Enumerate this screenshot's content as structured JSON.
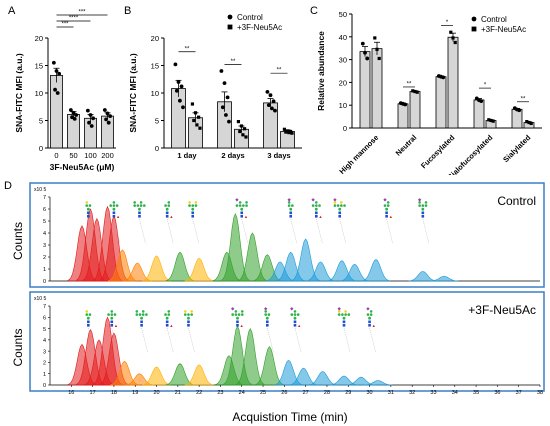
{
  "panels": {
    "A": "A",
    "B": "B",
    "C": "C",
    "D": "D"
  },
  "chart_data": [
    {
      "type": "bar",
      "panel": "A",
      "categories": [
        "0",
        "50",
        "100",
        "200"
      ],
      "values": [
        13.2,
        6.1,
        5.4,
        5.8
      ],
      "errors": [
        1.3,
        0.5,
        0.7,
        0.6
      ],
      "points": [
        [
          15.5,
          14.0,
          13.5,
          10.6,
          10.0
        ],
        [
          6.9,
          6.4,
          6.0,
          5.6,
          5.3
        ],
        [
          6.8,
          6.0,
          5.4,
          4.6,
          4.0
        ],
        [
          6.9,
          6.3,
          5.8,
          5.2,
          4.6
        ]
      ],
      "xlabel": "3F-Neu5Ac (μM)",
      "ylabel": "SNA-FITC MFI (a.u.)",
      "ylim": [
        0,
        20
      ],
      "yticks": [
        0,
        5,
        10,
        15,
        20
      ],
      "significance": [
        {
          "from": 0,
          "to": 1,
          "label": "***"
        },
        {
          "from": 0,
          "to": 2,
          "label": "****"
        },
        {
          "from": 0,
          "to": 3,
          "label": "***"
        }
      ],
      "grid": false
    },
    {
      "type": "bar",
      "panel": "B",
      "categories": [
        "1 day",
        "2 days",
        "3 days"
      ],
      "series": [
        {
          "name": "Control",
          "values": [
            10.8,
            8.4,
            8.2
          ],
          "errors": [
            1.5,
            1.8,
            0.8
          ],
          "points": [
            [
              15.2,
              12.0,
              11.2,
              10.4,
              8.6,
              7.4
            ],
            [
              14.0,
              11.8,
              9.2,
              7.4,
              6.0,
              4.8
            ],
            [
              10.2,
              9.6,
              8.5,
              7.8,
              7.2,
              6.8
            ]
          ]
        },
        {
          "name": "+3F-Neu5Ac",
          "values": [
            5.5,
            3.4,
            3.0
          ],
          "errors": [
            0.9,
            0.6,
            0.3
          ],
          "points": [
            [
              8.0,
              6.4,
              5.6,
              5.0,
              4.2,
              3.6
            ],
            [
              4.8,
              4.0,
              3.5,
              3.0,
              2.4,
              2.0
            ],
            [
              3.4,
              3.1,
              3.0,
              2.9,
              2.8,
              2.7
            ]
          ]
        }
      ],
      "ylabel": "SNA-FITC MFI (a.u.)",
      "ylim": [
        0,
        20
      ],
      "yticks": [
        0,
        5,
        10,
        15,
        20
      ],
      "significance": [
        {
          "group": 0,
          "label": "**"
        },
        {
          "group": 1,
          "label": "**"
        },
        {
          "group": 2,
          "label": "**"
        }
      ],
      "legend": "top-right",
      "grid": false
    },
    {
      "type": "bar",
      "panel": "C",
      "categories": [
        "High mannose",
        "Neutral",
        "Fucosylated",
        "Sialofucosylated",
        "Sialylated"
      ],
      "series": [
        {
          "name": "Control",
          "values": [
            33.5,
            10.6,
            22.5,
            12.3,
            8.2
          ],
          "errors": [
            2.2,
            0.3,
            0.3,
            0.6,
            0.4
          ],
          "points": [
            [
              37.0,
              33.0,
              30.5
            ],
            [
              10.9,
              10.6,
              10.3
            ],
            [
              22.8,
              22.5,
              22.2
            ],
            [
              13.0,
              12.2,
              11.8
            ],
            [
              8.7,
              8.1,
              7.8
            ]
          ]
        },
        {
          "name": "+3F-Neu5Ac",
          "values": [
            34.8,
            16.0,
            39.8,
            3.3,
            2.4
          ],
          "errors": [
            2.8,
            0.3,
            1.8,
            0.3,
            0.3
          ],
          "points": [
            [
              39.5,
              34.5,
              30.5
            ],
            [
              16.3,
              16.0,
              15.7
            ],
            [
              42.0,
              39.5,
              37.5
            ],
            [
              3.6,
              3.3,
              3.0
            ],
            [
              2.8,
              2.4,
              2.0
            ]
          ]
        }
      ],
      "ylabel": "Relative abundance",
      "ylim": [
        0,
        50
      ],
      "yticks": [
        0,
        10,
        20,
        30,
        40,
        50
      ],
      "significance": [
        {
          "group": 1,
          "label": "**"
        },
        {
          "group": 2,
          "label": "*"
        },
        {
          "group": 3,
          "label": "*"
        },
        {
          "group": 4,
          "label": "**"
        }
      ],
      "legend": "top-right",
      "grid": false
    },
    {
      "type": "area",
      "panel": "D",
      "xlabel": "Acquistion Time (min)",
      "xlim": [
        15,
        38
      ],
      "xticks": [
        16,
        17,
        18,
        19,
        20,
        21,
        22,
        23,
        24,
        25,
        26,
        27,
        28,
        29,
        30,
        31,
        32,
        33,
        34,
        35,
        36,
        37,
        38
      ],
      "subplots": [
        {
          "name": "Control",
          "ylabel": "Counts",
          "scale_label": "x10 5",
          "ylim": [
            0,
            7
          ],
          "yticks": [
            0,
            1,
            2,
            3,
            4,
            5,
            6,
            7
          ],
          "peaks": [
            {
              "x": 16.5,
              "y": 4.6,
              "color": "#e31a1c"
            },
            {
              "x": 16.9,
              "y": 6.0,
              "color": "#e31a1c"
            },
            {
              "x": 17.2,
              "y": 5.2,
              "color": "#e31a1c"
            },
            {
              "x": 17.7,
              "y": 6.2,
              "color": "#e31a1c"
            },
            {
              "x": 18.0,
              "y": 5.4,
              "color": "#e31a1c"
            },
            {
              "x": 18.4,
              "y": 2.6,
              "color": "#ff7f00"
            },
            {
              "x": 19.1,
              "y": 1.5,
              "color": "#ff7f00"
            },
            {
              "x": 20.0,
              "y": 2.1,
              "color": "#ffb000"
            },
            {
              "x": 21.1,
              "y": 2.4,
              "color": "#33a02c"
            },
            {
              "x": 22.0,
              "y": 1.9,
              "color": "#ffb000"
            },
            {
              "x": 23.3,
              "y": 2.4,
              "color": "#33a02c"
            },
            {
              "x": 23.7,
              "y": 5.6,
              "color": "#33a02c"
            },
            {
              "x": 24.5,
              "y": 4.0,
              "color": "#33a02c"
            },
            {
              "x": 25.2,
              "y": 2.2,
              "color": "#33a02c"
            },
            {
              "x": 25.8,
              "y": 1.6,
              "color": "#1f9bd9"
            },
            {
              "x": 26.3,
              "y": 2.4,
              "color": "#1f9bd9"
            },
            {
              "x": 27.0,
              "y": 3.5,
              "color": "#1f9bd9"
            },
            {
              "x": 27.7,
              "y": 1.6,
              "color": "#1f9bd9"
            },
            {
              "x": 28.7,
              "y": 1.7,
              "color": "#1f9bd9"
            },
            {
              "x": 29.3,
              "y": 1.4,
              "color": "#1f9bd9"
            },
            {
              "x": 30.3,
              "y": 1.8,
              "color": "#1f9bd9"
            },
            {
              "x": 32.5,
              "y": 0.8,
              "color": "#1f9bd9"
            },
            {
              "x": 33.5,
              "y": 0.4,
              "color": "#1f9bd9"
            }
          ]
        },
        {
          "name": "+3F-Neu5Ac",
          "ylabel": "Counts",
          "scale_label": "x10 5",
          "ylim": [
            0,
            7
          ],
          "yticks": [
            0,
            1,
            2,
            3,
            4,
            5,
            6,
            7
          ],
          "peaks": [
            {
              "x": 16.5,
              "y": 3.6,
              "color": "#e31a1c"
            },
            {
              "x": 16.9,
              "y": 4.9,
              "color": "#e31a1c"
            },
            {
              "x": 17.3,
              "y": 4.0,
              "color": "#e31a1c"
            },
            {
              "x": 17.7,
              "y": 6.0,
              "color": "#e31a1c"
            },
            {
              "x": 18.0,
              "y": 4.6,
              "color": "#e31a1c"
            },
            {
              "x": 18.5,
              "y": 2.1,
              "color": "#ff7f00"
            },
            {
              "x": 19.2,
              "y": 1.0,
              "color": "#ff7f00"
            },
            {
              "x": 20.0,
              "y": 1.6,
              "color": "#ffb000"
            },
            {
              "x": 21.1,
              "y": 1.9,
              "color": "#33a02c"
            },
            {
              "x": 22.0,
              "y": 1.8,
              "color": "#ffb000"
            },
            {
              "x": 23.4,
              "y": 2.6,
              "color": "#33a02c"
            },
            {
              "x": 23.8,
              "y": 5.2,
              "color": "#33a02c"
            },
            {
              "x": 24.4,
              "y": 5.0,
              "color": "#33a02c"
            },
            {
              "x": 25.3,
              "y": 3.4,
              "color": "#33a02c"
            },
            {
              "x": 26.2,
              "y": 2.2,
              "color": "#1f9bd9"
            },
            {
              "x": 26.9,
              "y": 1.5,
              "color": "#1f9bd9"
            },
            {
              "x": 27.8,
              "y": 1.2,
              "color": "#1f9bd9"
            },
            {
              "x": 28.8,
              "y": 0.8,
              "color": "#1f9bd9"
            },
            {
              "x": 29.6,
              "y": 0.7,
              "color": "#1f9bd9"
            },
            {
              "x": 30.4,
              "y": 0.4,
              "color": "#1f9bd9"
            }
          ]
        }
      ]
    }
  ],
  "colors": {
    "bar_fill": "#d6d6d6",
    "peak_red": "#e31a1c",
    "peak_orange": "#ff7f00",
    "peak_green": "#33a02c",
    "peak_blue": "#1f9bd9",
    "frame_blue": "#3a7fc6",
    "glycan_green": "#2db34a",
    "glycan_blue": "#1f4fd1",
    "glycan_yellow": "#f2d21b",
    "glycan_red": "#e02020",
    "glycan_purple": "#9b3fb5"
  },
  "icons": [
    "glycan-structure-icon"
  ]
}
